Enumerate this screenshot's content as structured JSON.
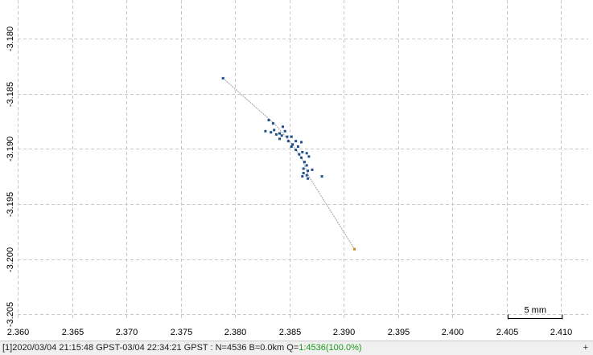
{
  "chart_data": {
    "type": "scatter",
    "title": "",
    "xlabel": "",
    "ylabel": "",
    "xlim": [
      2.36,
      2.4125
    ],
    "ylim": [
      -3.2055,
      -3.1765
    ],
    "grid": true,
    "x_ticks": [
      "2.360",
      "2.365",
      "2.370",
      "2.375",
      "2.380",
      "2.385",
      "2.390",
      "2.395",
      "2.400",
      "2.405",
      "2.410"
    ],
    "y_ticks": [
      "-3.180",
      "-3.185",
      "-3.190",
      "-3.195",
      "-3.200",
      "-3.205"
    ],
    "x_tick_values": [
      2.36,
      2.365,
      2.37,
      2.375,
      2.38,
      2.385,
      2.39,
      2.395,
      2.4,
      2.405,
      2.41
    ],
    "y_tick_values": [
      -3.18,
      -3.185,
      -3.19,
      -3.195,
      -3.2,
      -3.205
    ],
    "track": [
      {
        "x": 2.3789,
        "y": -3.1836
      },
      {
        "x": 2.3836,
        "y": -3.1877
      },
      {
        "x": 2.3852,
        "y": -3.1895
      },
      {
        "x": 2.3862,
        "y": -3.191
      },
      {
        "x": 2.3868,
        "y": -3.1925
      },
      {
        "x": 2.391,
        "y": -3.1991
      }
    ],
    "points": [
      {
        "x": 2.3789,
        "y": -3.1836
      },
      {
        "x": 2.3831,
        "y": -3.1874
      },
      {
        "x": 2.3836,
        "y": -3.1883
      },
      {
        "x": 2.3828,
        "y": -3.1884
      },
      {
        "x": 2.3833,
        "y": -3.1885
      },
      {
        "x": 2.3838,
        "y": -3.1887
      },
      {
        "x": 2.3841,
        "y": -3.1886
      },
      {
        "x": 2.3843,
        "y": -3.1888
      },
      {
        "x": 2.3846,
        "y": -3.1884
      },
      {
        "x": 2.3848,
        "y": -3.1889
      },
      {
        "x": 2.3844,
        "y": -3.188
      },
      {
        "x": 2.3852,
        "y": -3.1889
      },
      {
        "x": 2.3841,
        "y": -3.1891
      },
      {
        "x": 2.3849,
        "y": -3.1893
      },
      {
        "x": 2.3856,
        "y": -3.1893
      },
      {
        "x": 2.3861,
        "y": -3.1894
      },
      {
        "x": 2.3853,
        "y": -3.1896
      },
      {
        "x": 2.3858,
        "y": -3.1898
      },
      {
        "x": 2.3856,
        "y": -3.1901
      },
      {
        "x": 2.3862,
        "y": -3.1903
      },
      {
        "x": 2.3859,
        "y": -3.1905
      },
      {
        "x": 2.3866,
        "y": -3.1904
      },
      {
        "x": 2.3861,
        "y": -3.1908
      },
      {
        "x": 2.3868,
        "y": -3.1907
      },
      {
        "x": 2.3864,
        "y": -3.1912
      },
      {
        "x": 2.3866,
        "y": -3.1915
      },
      {
        "x": 2.3863,
        "y": -3.1918
      },
      {
        "x": 2.3867,
        "y": -3.192
      },
      {
        "x": 2.3863,
        "y": -3.1922
      },
      {
        "x": 2.3866,
        "y": -3.1924
      },
      {
        "x": 2.3862,
        "y": -3.1925
      },
      {
        "x": 2.3867,
        "y": -3.1927
      },
      {
        "x": 2.388,
        "y": -3.1925
      },
      {
        "x": 2.3871,
        "y": -3.1919
      },
      {
        "x": 2.3852,
        "y": -3.1898
      },
      {
        "x": 2.3835,
        "y": -3.1877
      }
    ],
    "end_point": {
      "x": 2.391,
      "y": -3.1991
    },
    "scale_bar": {
      "label": "5 mm",
      "length": 0.005
    }
  },
  "status": {
    "prefix": "[1]2020/03/04 21:15:48 GPST-03/04 22:34:21 GPST : N=4536 B=0.0km Q=",
    "quality": "1:4536(100.0%)",
    "corner_icon": "+"
  },
  "colors": {
    "grid": "#c8c8c8",
    "point": "#1c4f8c",
    "track": "#a0a0a0",
    "end_point": "#d08010",
    "axis_text": "#000000"
  }
}
